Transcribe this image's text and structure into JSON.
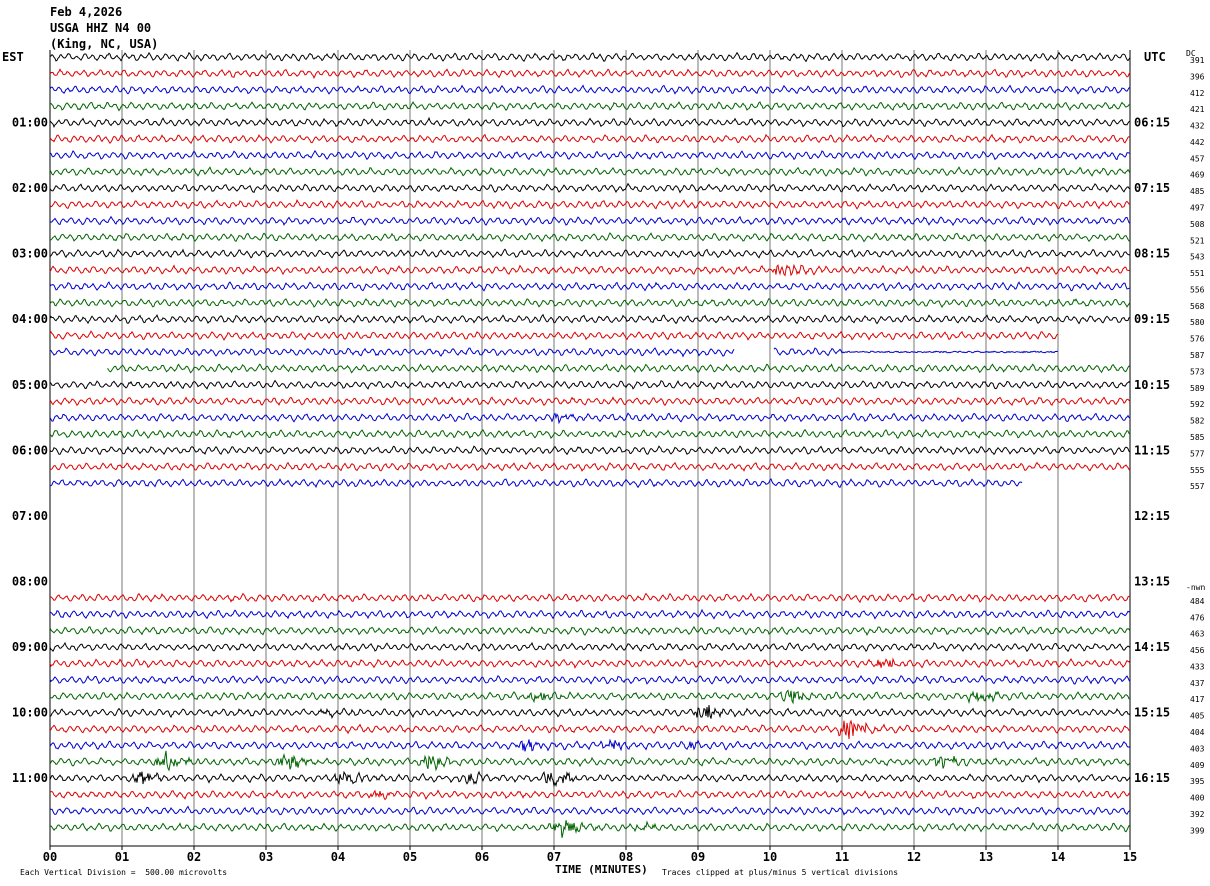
{
  "header": {
    "date": "Feb 4,2026",
    "station": "USGA HHZ N4 00",
    "location": "(King, NC, USA)"
  },
  "left_timezone": "EST",
  "right_timezone": "UTC",
  "dc_label": "DC",
  "nwn_label": "-nwn",
  "footer": {
    "scale_note": "Each Vertical Division =  500.00 microvolts",
    "x_title": "TIME (MINUTES)",
    "clip_note": "Traces clipped at plus/minus 5 vertical divisions"
  },
  "colors": {
    "black": "#000000",
    "red": "#dd0000",
    "blue": "#0000cc",
    "green": "#006400",
    "grid": "#555555"
  },
  "chart_data": {
    "type": "line",
    "title": "",
    "xlabel": "TIME (MINUTES)",
    "ylabel": "",
    "xlim": [
      0,
      15
    ],
    "x_ticks": [
      "00",
      "01",
      "02",
      "03",
      "04",
      "05",
      "06",
      "07",
      "08",
      "09",
      "10",
      "11",
      "12",
      "13",
      "14",
      "15"
    ],
    "row_minutes": 15,
    "color_cycle": [
      "black",
      "red",
      "blue",
      "green"
    ],
    "left_hour_labels": [
      {
        "row": 4,
        "text": "01:00"
      },
      {
        "row": 8,
        "text": "02:00"
      },
      {
        "row": 12,
        "text": "03:00"
      },
      {
        "row": 16,
        "text": "04:00"
      },
      {
        "row": 20,
        "text": "05:00"
      },
      {
        "row": 24,
        "text": "06:00"
      },
      {
        "row": 28,
        "text": "07:00"
      },
      {
        "row": 32,
        "text": "08:00"
      },
      {
        "row": 36,
        "text": "09:00"
      },
      {
        "row": 40,
        "text": "10:00"
      },
      {
        "row": 44,
        "text": "11:00"
      }
    ],
    "right_hour_labels": [
      {
        "row": 4,
        "text": "06:15"
      },
      {
        "row": 8,
        "text": "07:15"
      },
      {
        "row": 12,
        "text": "08:15"
      },
      {
        "row": 16,
        "text": "09:15"
      },
      {
        "row": 20,
        "text": "10:15"
      },
      {
        "row": 24,
        "text": "11:15"
      },
      {
        "row": 28,
        "text": "12:15"
      },
      {
        "row": 32,
        "text": "13:15"
      },
      {
        "row": 36,
        "text": "14:15"
      },
      {
        "row": 40,
        "text": "15:15"
      },
      {
        "row": 44,
        "text": "16:15"
      }
    ],
    "rows": [
      {
        "row": 0,
        "dc": "391",
        "start": 0,
        "end": 15
      },
      {
        "row": 1,
        "dc": "396",
        "start": 0,
        "end": 15
      },
      {
        "row": 2,
        "dc": "412",
        "start": 0,
        "end": 15
      },
      {
        "row": 3,
        "dc": "421",
        "start": 0,
        "end": 15
      },
      {
        "row": 4,
        "dc": "432",
        "start": 0,
        "end": 15
      },
      {
        "row": 5,
        "dc": "442",
        "start": 0,
        "end": 15
      },
      {
        "row": 6,
        "dc": "457",
        "start": 0,
        "end": 15
      },
      {
        "row": 7,
        "dc": "469",
        "start": 0,
        "end": 15
      },
      {
        "row": 8,
        "dc": "485",
        "start": 0,
        "end": 15
      },
      {
        "row": 9,
        "dc": "497",
        "start": 0,
        "end": 15
      },
      {
        "row": 10,
        "dc": "508",
        "start": 0,
        "end": 15
      },
      {
        "row": 11,
        "dc": "521",
        "start": 0,
        "end": 15
      },
      {
        "row": 12,
        "dc": "543",
        "start": 0,
        "end": 15
      },
      {
        "row": 13,
        "dc": "551",
        "start": 0,
        "end": 15,
        "events": [
          {
            "t": 10.2,
            "amp": 9
          }
        ]
      },
      {
        "row": 14,
        "dc": "556",
        "start": 0,
        "end": 15
      },
      {
        "row": 15,
        "dc": "568",
        "start": 0,
        "end": 15
      },
      {
        "row": 16,
        "dc": "580",
        "start": 0,
        "end": 15
      },
      {
        "row": 17,
        "dc": "576",
        "start": 0,
        "end": 14
      },
      {
        "row": 18,
        "dc": "587",
        "start": 0,
        "end": 14,
        "gap": [
          9.5,
          10.05
        ],
        "flat_after": 11.0
      },
      {
        "row": 19,
        "dc": "573",
        "start": 0.8,
        "end": 15
      },
      {
        "row": 20,
        "dc": "589",
        "start": 0,
        "end": 15
      },
      {
        "row": 21,
        "dc": "592",
        "start": 0,
        "end": 15
      },
      {
        "row": 22,
        "dc": "582",
        "start": 0,
        "end": 15,
        "events": [
          {
            "t": 7.1,
            "amp": 4
          }
        ]
      },
      {
        "row": 23,
        "dc": "585",
        "start": 0,
        "end": 15
      },
      {
        "row": 24,
        "dc": "577",
        "start": 0,
        "end": 15
      },
      {
        "row": 25,
        "dc": "555",
        "start": 0,
        "end": 15
      },
      {
        "row": 26,
        "dc": "557",
        "start": 0,
        "end": 13.5
      },
      {
        "row": 33,
        "dc": "484",
        "start": 0,
        "end": 15
      },
      {
        "row": 34,
        "dc": "476",
        "start": 0,
        "end": 15
      },
      {
        "row": 35,
        "dc": "463",
        "start": 0,
        "end": 15
      },
      {
        "row": 36,
        "dc": "456",
        "start": 0,
        "end": 15
      },
      {
        "row": 37,
        "dc": "433",
        "start": 0,
        "end": 15,
        "events": [
          {
            "t": 11.6,
            "amp": 5
          }
        ]
      },
      {
        "row": 38,
        "dc": "437",
        "start": 0,
        "end": 15
      },
      {
        "row": 39,
        "dc": "417",
        "start": 0,
        "end": 15,
        "events": [
          {
            "t": 6.8,
            "amp": 7
          },
          {
            "t": 10.3,
            "amp": 7
          },
          {
            "t": 12.9,
            "amp": 6
          }
        ]
      },
      {
        "row": 40,
        "dc": "405",
        "start": 0,
        "end": 15,
        "events": [
          {
            "t": 3.9,
            "amp": 3
          },
          {
            "t": 9.1,
            "amp": 9
          }
        ]
      },
      {
        "row": 41,
        "dc": "404",
        "start": 0,
        "end": 15,
        "events": [
          {
            "t": 11.1,
            "amp": 11
          }
        ]
      },
      {
        "row": 42,
        "dc": "403",
        "start": 0,
        "end": 15,
        "events": [
          {
            "t": 6.6,
            "amp": 6
          },
          {
            "t": 7.8,
            "amp": 5
          },
          {
            "t": 8.9,
            "amp": 4
          }
        ]
      },
      {
        "row": 43,
        "dc": "409",
        "start": 0,
        "end": 15,
        "events": [
          {
            "t": 1.6,
            "amp": 10
          },
          {
            "t": 3.3,
            "amp": 8
          },
          {
            "t": 5.3,
            "amp": 8
          },
          {
            "t": 12.4,
            "amp": 7
          }
        ]
      },
      {
        "row": 44,
        "dc": "395",
        "start": 0,
        "end": 15,
        "events": [
          {
            "t": 1.3,
            "amp": 6
          },
          {
            "t": 4.1,
            "amp": 7
          },
          {
            "t": 5.8,
            "amp": 6
          },
          {
            "t": 7.0,
            "amp": 8
          }
        ]
      },
      {
        "row": 45,
        "dc": "400",
        "start": 0,
        "end": 15,
        "events": [
          {
            "t": 4.6,
            "amp": 4
          }
        ]
      },
      {
        "row": 46,
        "dc": "392",
        "start": 0,
        "end": 15
      },
      {
        "row": 47,
        "dc": "399",
        "start": 0,
        "end": 15,
        "events": [
          {
            "t": 7.1,
            "amp": 10
          },
          {
            "t": 8.2,
            "amp": 4
          }
        ]
      }
    ]
  }
}
